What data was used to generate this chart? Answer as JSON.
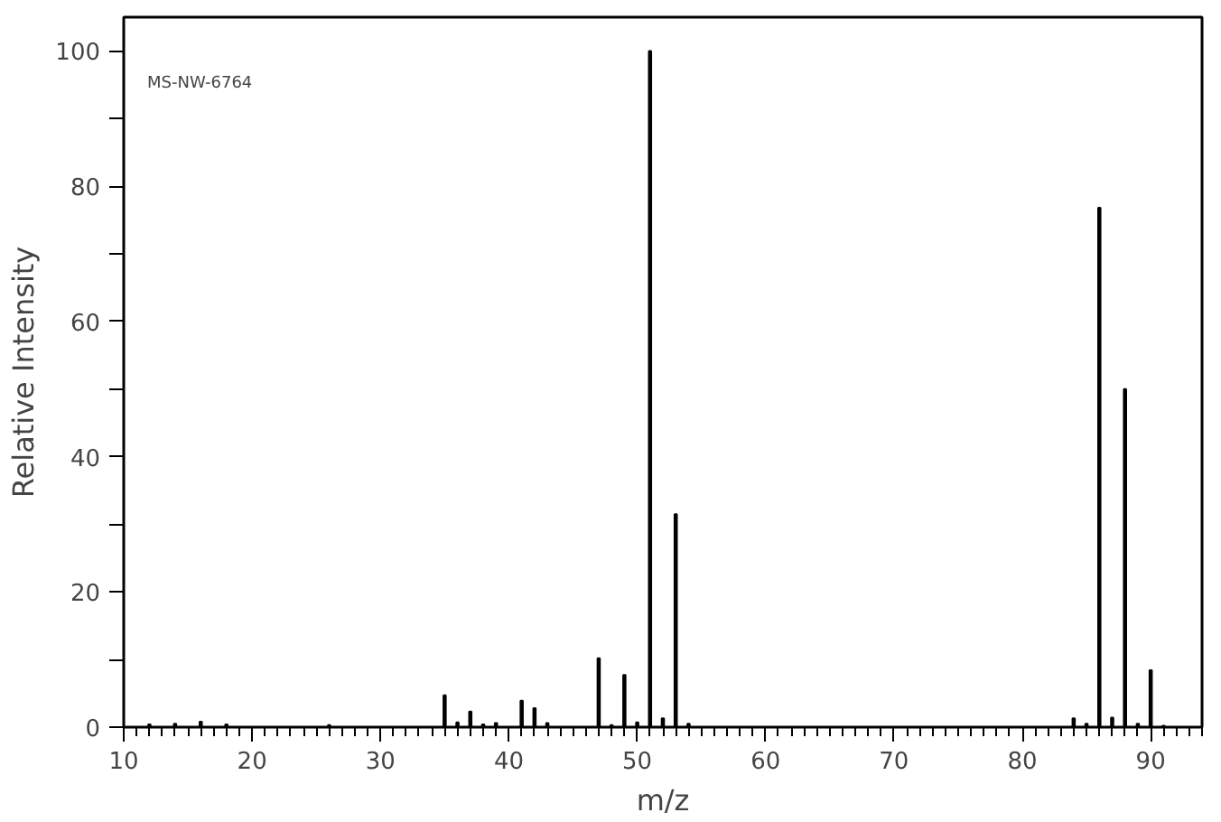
{
  "chart_data": {
    "type": "bar",
    "xlabel": "m/z",
    "ylabel": "Relative Intensity",
    "annotations": [
      "MS-NW-6764"
    ],
    "x": [
      12,
      14,
      16,
      18,
      26,
      35,
      36,
      37,
      38,
      39,
      41,
      42,
      43,
      47,
      48,
      49,
      50,
      51,
      52,
      53,
      54,
      84,
      85,
      86,
      87,
      88,
      89,
      90,
      91
    ],
    "series": [
      {
        "color": "#000000",
        "values": [
          0.4,
          0.5,
          0.8,
          0.4,
          0.3,
          4.7,
          0.7,
          2.3,
          0.4,
          0.6,
          3.9,
          2.8,
          0.6,
          10.2,
          0.3,
          7.7,
          0.7,
          100,
          1.3,
          31.5,
          0.5,
          1.3,
          0.5,
          76.8,
          1.4,
          50,
          0.5,
          8.4,
          0.2
        ]
      }
    ],
    "xlim": [
      10,
      94
    ],
    "ylim": [
      0,
      105
    ],
    "xticks": [
      10,
      20,
      30,
      40,
      50,
      60,
      70,
      80,
      90
    ],
    "yticks": [
      0,
      {
        "value": 10,
        "label": null
      },
      20,
      {
        "value": 30,
        "label": null
      },
      40,
      {
        "value": 50,
        "label": null
      },
      60,
      {
        "value": 70,
        "label": null
      },
      80,
      {
        "value": 90,
        "label": null
      },
      100
    ],
    "grid": false
  }
}
